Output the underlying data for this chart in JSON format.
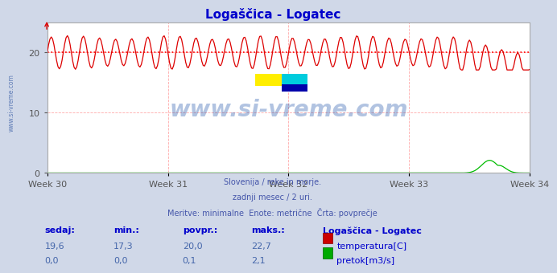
{
  "title": "Logaščica - Logatec",
  "title_color": "#0000cc",
  "bg_color": "#d0d8e8",
  "plot_bg_color": "#ffffff",
  "grid_color": "#ffaaaa",
  "grid_style": "--",
  "yticks": [
    0,
    10,
    20
  ],
  "ylim": [
    0,
    25
  ],
  "week_labels": [
    "Week 30",
    "Week 31",
    "Week 32",
    "Week 33",
    "Week 34"
  ],
  "avg_temp": 20.0,
  "avg_line_color": "#ff0000",
  "avg_line_style": ":",
  "temp_color": "#dd0000",
  "flow_color": "#00bb00",
  "temp_min": 17.3,
  "temp_max": 22.7,
  "temp_avg": 20.0,
  "flow_max": 2.1,
  "n_points": 360,
  "watermark_text": "www.si-vreme.com",
  "watermark_color": "#2255aa",
  "watermark_alpha": 0.35,
  "footer_lines": [
    "Slovenija / reke in morje.",
    "zadnji mesec / 2 uri.",
    "Meritve: minimalne  Enote: metrične  Črta: povprečje"
  ],
  "footer_color": "#4455aa",
  "table_headers": [
    "sedaj:",
    "min.:",
    "povpr.:",
    "maks.:"
  ],
  "table_row1": [
    "19,6",
    "17,3",
    "20,0",
    "22,7"
  ],
  "table_row2": [
    "0,0",
    "0,0",
    "0,1",
    "2,1"
  ],
  "table_legend_title": "Logaščica - Logatec",
  "table_label1": "temperatura[C]",
  "table_label2": "pretok[m3/s]",
  "table_header_color": "#0000cc",
  "table_value_color": "#4466aa",
  "left_label": "www.si-vreme.com",
  "left_label_color": "#4466aa"
}
